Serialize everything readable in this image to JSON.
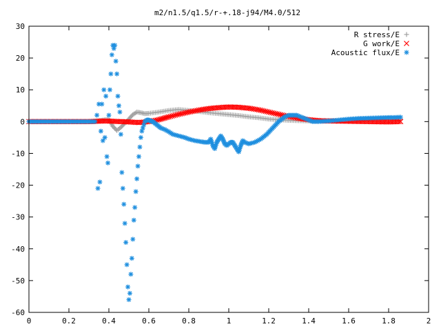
{
  "chart_data": {
    "type": "scatter",
    "title": "m2/n1.5/q1.5/r-+.18-j94/M4.0/512",
    "xlabel": "",
    "ylabel": "",
    "xlim": [
      0,
      2
    ],
    "ylim": [
      -60,
      30
    ],
    "xticks": [
      0,
      0.2,
      0.4,
      0.6,
      0.8,
      1,
      1.2,
      1.4,
      1.6,
      1.8,
      2
    ],
    "xtick_labels": [
      "0",
      "0.2",
      "0.4",
      "0.6",
      "0.8",
      "1",
      "1.2",
      "1.4",
      "1.6",
      "1.8",
      "2"
    ],
    "yticks": [
      30,
      20,
      10,
      0,
      -10,
      -20,
      -30,
      -40,
      -50,
      -60
    ],
    "ytick_labels": [
      "30",
      "20",
      "10",
      "0",
      "-10",
      "-20",
      "-30",
      "-40",
      "-50",
      "-60"
    ],
    "grid": false,
    "legend_position": "top-right",
    "series": [
      {
        "name": "R stress/E",
        "marker": "plus",
        "color": "#a0a0a0",
        "x": [
          0.0,
          0.1,
          0.2,
          0.3,
          0.34,
          0.37,
          0.4,
          0.42,
          0.44,
          0.46,
          0.48,
          0.5,
          0.52,
          0.54,
          0.56,
          0.58,
          0.6,
          0.65,
          0.7,
          0.75,
          0.8,
          0.85,
          0.9,
          0.95,
          1.0,
          1.05,
          1.1,
          1.15,
          1.2,
          1.25,
          1.3,
          1.35,
          1.4,
          1.45,
          1.5,
          1.6,
          1.7,
          1.8,
          1.86
        ],
        "y": [
          0,
          0,
          0,
          0,
          0.2,
          0.5,
          0.8,
          -1.5,
          -2.8,
          -1.8,
          -0.5,
          0.8,
          2.2,
          3.0,
          2.8,
          2.5,
          2.6,
          3.0,
          3.5,
          3.8,
          3.5,
          3.2,
          2.8,
          2.5,
          2.2,
          1.9,
          1.5,
          1.2,
          0.8,
          0.6,
          0.4,
          0.3,
          0.2,
          0.2,
          0.3,
          0.5,
          0.6,
          0.7,
          0.8
        ]
      },
      {
        "name": "G work/E",
        "marker": "cross",
        "color": "#ff0000",
        "x": [
          0.0,
          0.1,
          0.2,
          0.3,
          0.34,
          0.38,
          0.42,
          0.46,
          0.5,
          0.55,
          0.6,
          0.65,
          0.7,
          0.75,
          0.8,
          0.85,
          0.9,
          0.95,
          1.0,
          1.05,
          1.1,
          1.15,
          1.2,
          1.25,
          1.3,
          1.35,
          1.4,
          1.45,
          1.5,
          1.6,
          1.7,
          1.8,
          1.86
        ],
        "y": [
          0,
          0,
          0,
          0,
          0.1,
          0.2,
          0.1,
          0.0,
          -0.1,
          -0.3,
          0.0,
          0.6,
          1.5,
          2.3,
          3.0,
          3.6,
          4.1,
          4.4,
          4.6,
          4.5,
          4.2,
          3.7,
          3.0,
          2.3,
          1.6,
          1.0,
          0.6,
          0.3,
          0.2,
          0.1,
          0.0,
          -0.1,
          0.0
        ]
      },
      {
        "name": "Acoustic flux/E",
        "marker": "star",
        "color": "#1f8fdf",
        "x": [
          0.0,
          0.05,
          0.1,
          0.15,
          0.2,
          0.25,
          0.3,
          0.33,
          0.34,
          0.345,
          0.35,
          0.355,
          0.36,
          0.365,
          0.37,
          0.375,
          0.38,
          0.385,
          0.39,
          0.395,
          0.4,
          0.405,
          0.41,
          0.415,
          0.42,
          0.425,
          0.43,
          0.435,
          0.44,
          0.445,
          0.45,
          0.455,
          0.46,
          0.465,
          0.47,
          0.475,
          0.48,
          0.485,
          0.49,
          0.495,
          0.5,
          0.505,
          0.51,
          0.515,
          0.52,
          0.525,
          0.53,
          0.535,
          0.54,
          0.545,
          0.55,
          0.555,
          0.56,
          0.565,
          0.57,
          0.575,
          0.58,
          0.59,
          0.6,
          0.61,
          0.62,
          0.63,
          0.64,
          0.65,
          0.66,
          0.68,
          0.7,
          0.72,
          0.75,
          0.78,
          0.8,
          0.83,
          0.86,
          0.88,
          0.9,
          0.91,
          0.92,
          0.93,
          0.94,
          0.95,
          0.96,
          0.97,
          0.98,
          0.99,
          1.0,
          1.01,
          1.02,
          1.03,
          1.04,
          1.05,
          1.06,
          1.07,
          1.08,
          1.1,
          1.13,
          1.16,
          1.19,
          1.22,
          1.25,
          1.28,
          1.3,
          1.32,
          1.34,
          1.36,
          1.38,
          1.4,
          1.42,
          1.45,
          1.5,
          1.55,
          1.6,
          1.65,
          1.7,
          1.75,
          1.8,
          1.83,
          1.86
        ],
        "y": [
          0,
          0,
          0,
          0,
          0,
          0,
          0,
          0,
          2,
          -21,
          5.5,
          -19,
          -3,
          5.5,
          -6,
          10,
          -5,
          8,
          -11,
          -13,
          2,
          10,
          15,
          21,
          24,
          23,
          24,
          19,
          15,
          8,
          5,
          3,
          -4,
          -16,
          -21,
          -26,
          -32,
          -38,
          -45,
          -52,
          -56,
          -54,
          -48,
          -43,
          -37,
          -31,
          -27,
          -22,
          -18,
          -14,
          -11,
          -8,
          -5,
          -3,
          -2,
          -1,
          0,
          0.5,
          0.5,
          0.2,
          0,
          -0.5,
          -1,
          -1.5,
          -2,
          -2.5,
          -3.2,
          -4,
          -4.5,
          -5,
          -5.5,
          -6,
          -6.3,
          -6.5,
          -6.5,
          -5.5,
          -7.5,
          -8.5,
          -6.5,
          -5.5,
          -4.5,
          -5.5,
          -7,
          -7.5,
          -7,
          -6.5,
          -6.5,
          -7.5,
          -8.5,
          -9.5,
          -7.5,
          -6,
          -6.5,
          -7,
          -6.5,
          -5.5,
          -4,
          -2,
          0,
          1.5,
          2,
          2,
          2,
          1.5,
          1,
          0.5,
          0,
          0,
          0.2,
          0.5,
          0.8,
          1.0,
          1.1,
          1.2,
          1.3,
          1.3,
          1.4
        ]
      }
    ]
  }
}
